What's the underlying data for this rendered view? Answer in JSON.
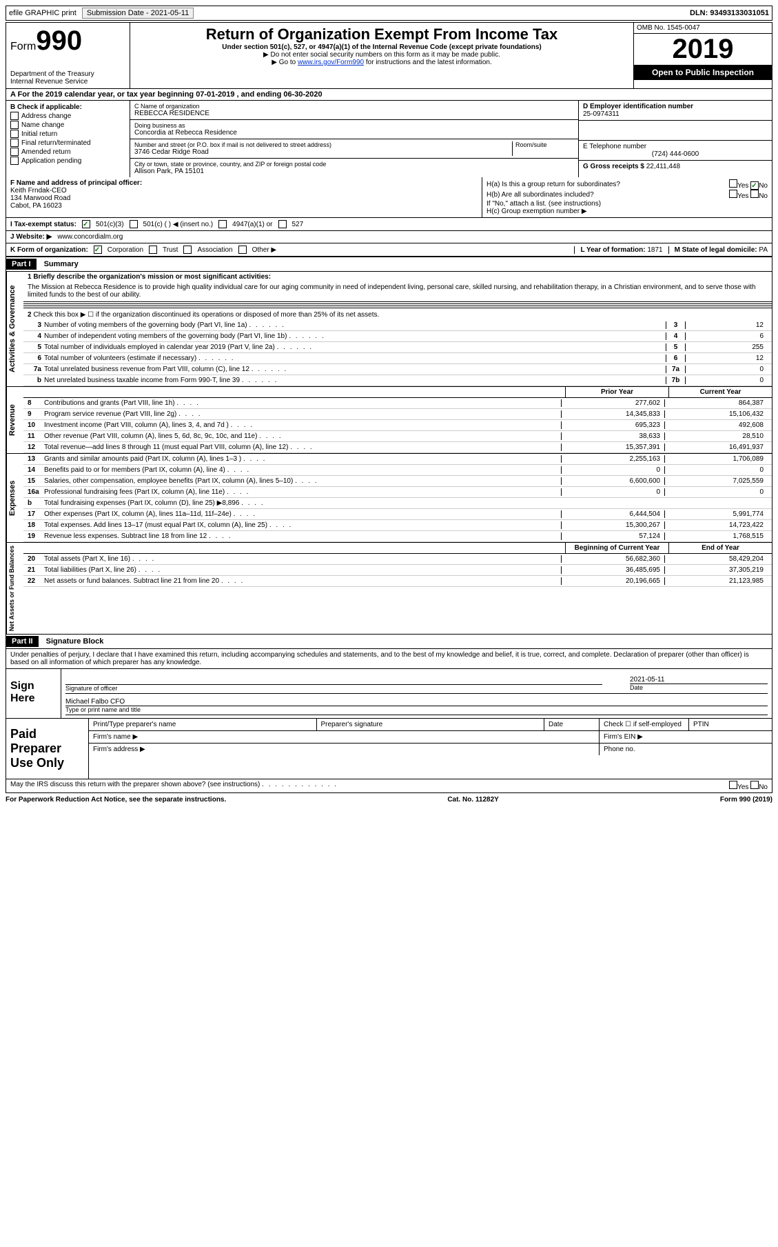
{
  "topbar": {
    "efile": "efile GRAPHIC print",
    "submission_label": "Submission Date - ",
    "submission_date": "2021-05-11",
    "dln_label": "DLN: ",
    "dln": "93493133031051"
  },
  "header": {
    "form_label": "Form",
    "form_num": "990",
    "dept": "Department of the Treasury",
    "irs": "Internal Revenue Service",
    "title": "Return of Organization Exempt From Income Tax",
    "subtitle": "Under section 501(c), 527, or 4947(a)(1) of the Internal Revenue Code (except private foundations)",
    "note1": "▶ Do not enter social security numbers on this form as it may be made public.",
    "note2_pre": "▶ Go to ",
    "note2_link": "www.irs.gov/Form990",
    "note2_post": " for instructions and the latest information.",
    "omb": "OMB No. 1545-0047",
    "year": "2019",
    "open_public": "Open to Public Inspection"
  },
  "rowA": "A For the 2019 calendar year, or tax year beginning 07-01-2019  , and ending 06-30-2020",
  "boxB": {
    "label": "B Check if applicable:",
    "opts": [
      "Address change",
      "Name change",
      "Initial return",
      "Final return/terminated",
      "Amended return",
      "Application pending"
    ]
  },
  "boxC": {
    "name_label": "C Name of organization",
    "name": "REBECCA RESIDENCE",
    "dba_label": "Doing business as",
    "dba": "Concordia at Rebecca Residence",
    "addr_label": "Number and street (or P.O. box if mail is not delivered to street address)",
    "room_label": "Room/suite",
    "addr": "3746 Cedar Ridge Road",
    "city_label": "City or town, state or province, country, and ZIP or foreign postal code",
    "city": "Allison Park, PA  15101"
  },
  "boxD": {
    "label": "D Employer identification number",
    "val": "25-0974311"
  },
  "boxE": {
    "label": "E Telephone number",
    "val": "(724) 444-0600"
  },
  "boxG": {
    "label": "G Gross receipts $ ",
    "val": "22,411,448"
  },
  "boxF": {
    "label": "F  Name and address of principal officer:",
    "name": "Keith Frndak-CEO",
    "addr1": "134 Marwood Road",
    "addr2": "Cabot, PA  16023"
  },
  "boxH": {
    "ha": "H(a)  Is this a group return for subordinates?",
    "hb": "H(b)  Are all subordinates included?",
    "hb_note": "If \"No,\" attach a list. (see instructions)",
    "hc": "H(c)  Group exemption number ▶",
    "yes": "Yes",
    "no": "No"
  },
  "boxI": {
    "label": "I  Tax-exempt status:",
    "opt1": "501(c)(3)",
    "opt2": "501(c) (  ) ◀ (insert no.)",
    "opt3": "4947(a)(1) or",
    "opt4": "527"
  },
  "boxJ": {
    "label": "J  Website: ▶",
    "val": "www.concordialm.org"
  },
  "boxK": {
    "label": "K Form of organization:",
    "opts": [
      "Corporation",
      "Trust",
      "Association",
      "Other ▶"
    ]
  },
  "boxL": {
    "label": "L Year of formation: ",
    "val": "1871"
  },
  "boxM": {
    "label": "M State of legal domicile: ",
    "val": "PA"
  },
  "part1": {
    "header": "Part I",
    "title": "Summary",
    "line1_label": "1  Briefly describe the organization's mission or most significant activities:",
    "mission": "The Mission at Rebecca Residence is to provide high quality individual care for our aging community in need of independent living, personal care, skilled nursing, and rehabilitation therapy, in a Christian environment, and to serve those with limited funds to the best of our ability.",
    "line2": "Check this box ▶ ☐  if the organization discontinued its operations or disposed of more than 25% of its net assets.",
    "activities_label": "Activities & Governance",
    "revenue_label": "Revenue",
    "expenses_label": "Expenses",
    "netassets_label": "Net Assets or Fund Balances",
    "lines_simple": [
      {
        "n": "3",
        "t": "Number of voting members of the governing body (Part VI, line 1a)",
        "b": "3",
        "v": "12"
      },
      {
        "n": "4",
        "t": "Number of independent voting members of the governing body (Part VI, line 1b)",
        "b": "4",
        "v": "6"
      },
      {
        "n": "5",
        "t": "Total number of individuals employed in calendar year 2019 (Part V, line 2a)",
        "b": "5",
        "v": "255"
      },
      {
        "n": "6",
        "t": "Total number of volunteers (estimate if necessary)",
        "b": "6",
        "v": "12"
      },
      {
        "n": "7a",
        "t": "Total unrelated business revenue from Part VIII, column (C), line 12",
        "b": "7a",
        "v": "0"
      },
      {
        "n": "b",
        "t": "Net unrelated business taxable income from Form 990-T, line 39",
        "b": "7b",
        "v": "0"
      }
    ],
    "col_prior": "Prior Year",
    "col_current": "Current Year",
    "revenue_lines": [
      {
        "n": "8",
        "t": "Contributions and grants (Part VIII, line 1h)",
        "p": "277,602",
        "c": "864,387"
      },
      {
        "n": "9",
        "t": "Program service revenue (Part VIII, line 2g)",
        "p": "14,345,833",
        "c": "15,106,432"
      },
      {
        "n": "10",
        "t": "Investment income (Part VIII, column (A), lines 3, 4, and 7d )",
        "p": "695,323",
        "c": "492,608"
      },
      {
        "n": "11",
        "t": "Other revenue (Part VIII, column (A), lines 5, 6d, 8c, 9c, 10c, and 11e)",
        "p": "38,633",
        "c": "28,510"
      },
      {
        "n": "12",
        "t": "Total revenue—add lines 8 through 11 (must equal Part VIII, column (A), line 12)",
        "p": "15,357,391",
        "c": "16,491,937"
      }
    ],
    "expense_lines": [
      {
        "n": "13",
        "t": "Grants and similar amounts paid (Part IX, column (A), lines 1–3 )",
        "p": "2,255,163",
        "c": "1,706,089"
      },
      {
        "n": "14",
        "t": "Benefits paid to or for members (Part IX, column (A), line 4)",
        "p": "0",
        "c": "0"
      },
      {
        "n": "15",
        "t": "Salaries, other compensation, employee benefits (Part IX, column (A), lines 5–10)",
        "p": "6,600,600",
        "c": "7,025,559"
      },
      {
        "n": "16a",
        "t": "Professional fundraising fees (Part IX, column (A), line 11e)",
        "p": "0",
        "c": "0"
      },
      {
        "n": "b",
        "t": "Total fundraising expenses (Part IX, column (D), line 25) ▶8,896",
        "p": "",
        "c": "",
        "grey": true
      },
      {
        "n": "17",
        "t": "Other expenses (Part IX, column (A), lines 11a–11d, 11f–24e)",
        "p": "6,444,504",
        "c": "5,991,774"
      },
      {
        "n": "18",
        "t": "Total expenses. Add lines 13–17 (must equal Part IX, column (A), line 25)",
        "p": "15,300,267",
        "c": "14,723,422"
      },
      {
        "n": "19",
        "t": "Revenue less expenses. Subtract line 18 from line 12",
        "p": "57,124",
        "c": "1,768,515"
      }
    ],
    "col_begin": "Beginning of Current Year",
    "col_end": "End of Year",
    "net_lines": [
      {
        "n": "20",
        "t": "Total assets (Part X, line 16)",
        "p": "56,682,360",
        "c": "58,429,204"
      },
      {
        "n": "21",
        "t": "Total liabilities (Part X, line 26)",
        "p": "36,485,695",
        "c": "37,305,219"
      },
      {
        "n": "22",
        "t": "Net assets or fund balances. Subtract line 21 from line 20",
        "p": "20,196,665",
        "c": "21,123,985"
      }
    ]
  },
  "part2": {
    "header": "Part II",
    "title": "Signature Block",
    "decl": "Under penalties of perjury, I declare that I have examined this return, including accompanying schedules and statements, and to the best of my knowledge and belief, it is true, correct, and complete. Declaration of preparer (other than officer) is based on all information of which preparer has any knowledge.",
    "sign_here": "Sign Here",
    "sig_officer": "Signature of officer",
    "sig_date": "Date",
    "sig_date_val": "2021-05-11",
    "officer_name": "Michael Falbo CFO",
    "officer_label": "Type or print name and title",
    "paid_prep": "Paid Preparer Use Only",
    "prep_name": "Print/Type preparer's name",
    "prep_sig": "Preparer's signature",
    "date": "Date",
    "check_self": "Check ☐ if self-employed",
    "ptin": "PTIN",
    "firm_name": "Firm's name    ▶",
    "firm_ein": "Firm's EIN ▶",
    "firm_addr": "Firm's address ▶",
    "phone": "Phone no.",
    "discuss": "May the IRS discuss this return with the preparer shown above? (see instructions)",
    "yes": "Yes",
    "no": "No"
  },
  "footer": {
    "paperwork": "For Paperwork Reduction Act Notice, see the separate instructions.",
    "cat": "Cat. No. 11282Y",
    "form": "Form 990 (2019)"
  }
}
